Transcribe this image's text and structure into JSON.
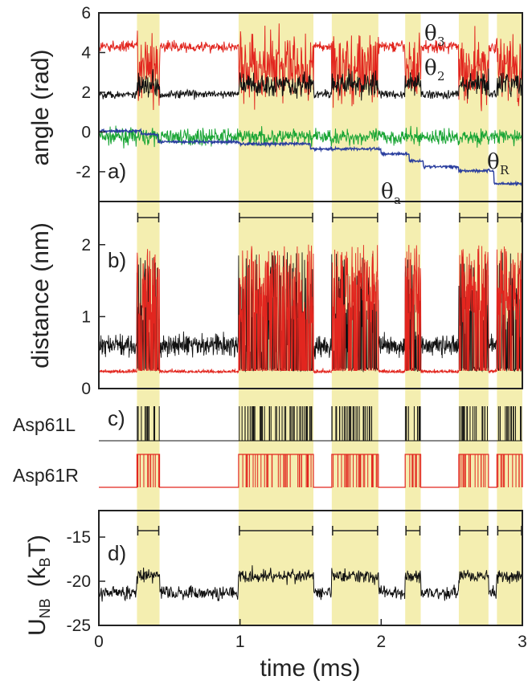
{
  "colors": {
    "band": "#f4eeb0",
    "black": "#111111",
    "red": "#e2261f",
    "green": "#1aa535",
    "blue": "#2a3e9e",
    "frame": "#222222"
  },
  "chart_data": {
    "type": "line",
    "x": {
      "label": "time (ms)",
      "lim": [
        0,
        3
      ],
      "ticks": [
        0,
        1,
        2,
        3
      ],
      "tick_labels": [
        "0",
        "1",
        "2",
        "3"
      ]
    },
    "shaded_intervals_ms": [
      [
        0.27,
        0.43
      ],
      [
        0.99,
        1.52
      ],
      [
        1.65,
        1.98
      ],
      [
        2.17,
        2.28
      ],
      [
        2.55,
        2.76
      ],
      [
        2.82,
        3.0
      ]
    ],
    "panels": [
      {
        "id": "a",
        "tag": "a)",
        "ylabel": "angle (rad)",
        "ylim": [
          -3.5,
          6
        ],
        "yticks": [
          -2,
          0,
          2,
          4,
          6
        ],
        "ytick_labels": [
          "-2",
          "0",
          "2",
          "4",
          "6"
        ],
        "series_labels": [
          {
            "text": "θ",
            "sub": "3"
          },
          {
            "text": "θ",
            "sub": "2"
          },
          {
            "text": "θ",
            "sub": "a"
          },
          {
            "text": "θ",
            "sub": "R"
          }
        ],
        "series": [
          {
            "color": "red",
            "base_value": 4.3,
            "active_value": 3.2,
            "active_noise": 1.3,
            "noise": 0.2
          },
          {
            "color": "black",
            "base_value": 1.9,
            "active_value": 2.4,
            "active_noise": 0.45,
            "noise": 0.15
          },
          {
            "color": "green",
            "base_value": -0.25,
            "noise": 0.28
          },
          {
            "color": "blue",
            "steps": [
              [
                0,
                0.05
              ],
              [
                0.3,
                -0.1
              ],
              [
                0.42,
                -0.5
              ],
              [
                1.0,
                -0.6
              ],
              [
                1.5,
                -0.85
              ],
              [
                2.0,
                -1.1
              ],
              [
                2.2,
                -1.45
              ],
              [
                2.3,
                -1.75
              ],
              [
                2.55,
                -1.95
              ],
              [
                2.8,
                -2.6
              ],
              [
                3.0,
                -2.7
              ]
            ],
            "noise": 0.05
          }
        ]
      },
      {
        "id": "b",
        "tag": "b)",
        "ylabel": "distance (nm)",
        "ylim": [
          0,
          2.6
        ],
        "yticks": [
          0,
          1,
          2
        ],
        "ytick_labels": [
          "0",
          "1",
          "2"
        ],
        "series": [
          {
            "color": "black",
            "base_value": 0.6,
            "active_peak": 1.9,
            "noise": 0.1
          },
          {
            "color": "red",
            "base_value": 0.22,
            "active_peak": 2.0,
            "noise": 0.03
          }
        ]
      },
      {
        "id": "c",
        "tag": "c)",
        "rows": [
          {
            "label": "Asp61L",
            "color": "black",
            "state_in_intervals": "spikes"
          },
          {
            "label": "Asp61R",
            "color": "red",
            "state_in_intervals": "high"
          }
        ]
      },
      {
        "id": "d",
        "tag": "d)",
        "ylabel_main": "U",
        "ylabel_sub": "NB",
        "ylabel_tail_open": "(k",
        "ylabel_tail_sub": "B",
        "ylabel_tail_close": "T)",
        "ylim": [
          -25,
          -12
        ],
        "yticks": [
          -25,
          -20,
          -15
        ],
        "ytick_labels": [
          "-25",
          "-20",
          "-15"
        ],
        "series": [
          {
            "color": "black",
            "base_value": -21.3,
            "active_value": -19.4,
            "noise": 0.55
          }
        ]
      }
    ]
  }
}
